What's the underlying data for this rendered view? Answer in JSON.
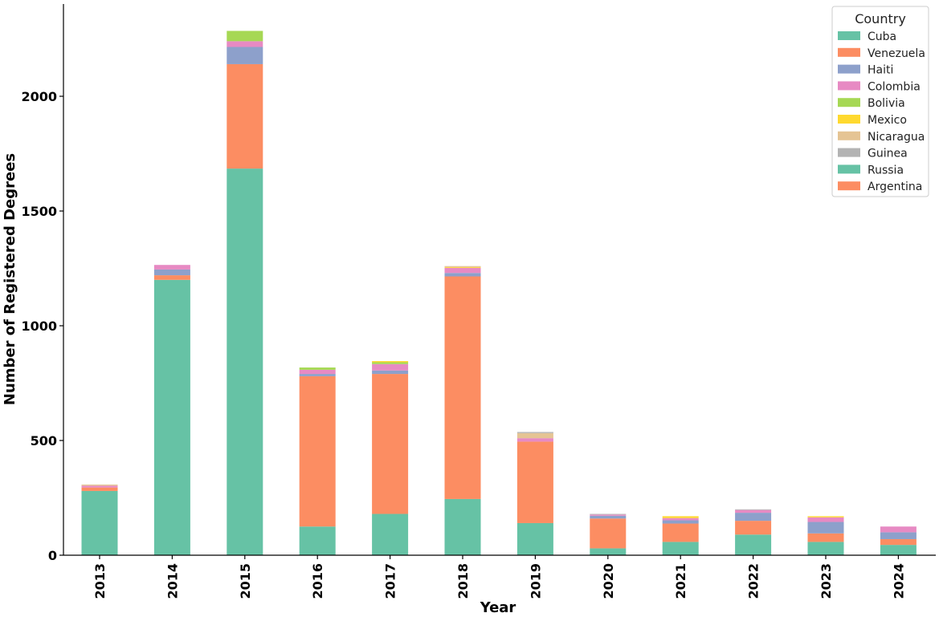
{
  "chart_data": {
    "type": "bar",
    "stacked": true,
    "title": "",
    "xlabel": "Year",
    "ylabel": "Number of Registered Degrees",
    "ylim": [
      0,
      2400
    ],
    "yticks": [
      0,
      500,
      1000,
      1500,
      2000
    ],
    "grid": false,
    "legend_title": "Country",
    "legend_position": "top-right",
    "categories": [
      "2013",
      "2014",
      "2015",
      "2016",
      "2017",
      "2018",
      "2019",
      "2020",
      "2021",
      "2022",
      "2023",
      "2024"
    ],
    "series": [
      {
        "name": "Cuba",
        "color": "#66c2a5",
        "values": [
          280,
          1200,
          1685,
          125,
          180,
          245,
          140,
          30,
          58,
          90,
          58,
          45
        ]
      },
      {
        "name": "Venezuela",
        "color": "#fc8d62",
        "values": [
          15,
          20,
          455,
          655,
          610,
          970,
          355,
          130,
          80,
          60,
          37,
          25
        ]
      },
      {
        "name": "Haiti",
        "color": "#8da0cb",
        "values": [
          0,
          25,
          75,
          10,
          15,
          15,
          0,
          12,
          14,
          35,
          50,
          30
        ]
      },
      {
        "name": "Colombia",
        "color": "#e78ac3",
        "values": [
          8,
          20,
          25,
          18,
          28,
          22,
          15,
          5,
          10,
          12,
          20,
          25
        ]
      },
      {
        "name": "Bolivia",
        "color": "#a6d854",
        "values": [
          0,
          0,
          45,
          10,
          8,
          0,
          0,
          0,
          0,
          0,
          0,
          0
        ]
      },
      {
        "name": "Mexico",
        "color": "#ffd92f",
        "values": [
          0,
          0,
          0,
          0,
          5,
          3,
          0,
          0,
          8,
          0,
          5,
          0
        ]
      },
      {
        "name": "Nicaragua",
        "color": "#e5c494",
        "values": [
          5,
          0,
          0,
          0,
          0,
          5,
          22,
          0,
          0,
          0,
          0,
          0
        ]
      },
      {
        "name": "Guinea",
        "color": "#b3b3b3",
        "values": [
          0,
          0,
          0,
          0,
          0,
          0,
          5,
          3,
          0,
          3,
          0,
          0
        ]
      },
      {
        "name": "Russia",
        "color": "#66c2a5",
        "values": [
          0,
          0,
          0,
          0,
          0,
          0,
          0,
          0,
          0,
          0,
          0,
          0
        ]
      },
      {
        "name": "Argentina",
        "color": "#fc8d62",
        "values": [
          0,
          0,
          0,
          0,
          0,
          0,
          0,
          0,
          0,
          0,
          0,
          0
        ]
      }
    ]
  }
}
